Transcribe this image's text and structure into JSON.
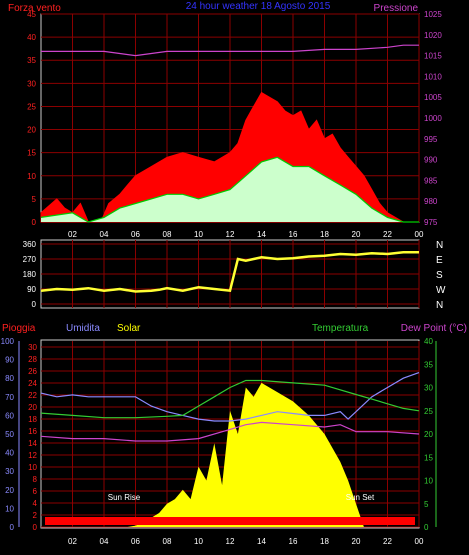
{
  "header": {
    "title": "24 hour weather 18 Agosto 2015",
    "left_label": "Forza vento",
    "right_label": "Pressione"
  },
  "panel3_labels": {
    "pioggia": "Pioggia",
    "umidita": "Umidita",
    "solar": "Solar",
    "temperatura": "Temperatura",
    "dew_point": "Dew Point (°C)"
  },
  "annotations": {
    "sunrise": "Sun Rise",
    "sunset": "Sun Set"
  },
  "colors": {
    "gust": "#ff0000",
    "wind": "#00cc00",
    "wind_fill": "#ccffcc",
    "pressure": "#cc44cc",
    "direction": "#ffff33",
    "humidity": "#8a8aff",
    "temperature": "#33cc33",
    "dew_point": "#cc44cc",
    "solar": "#ffff00",
    "rain": "#ff0000",
    "grid": "#8b0000",
    "axis_left": "#ff2020",
    "axis_right": "#cc44cc",
    "axis_blue": "#8a8aff",
    "axis_green": "#33cc33"
  },
  "chart_data": [
    {
      "type": "line",
      "name": "wind-pressure",
      "x_ticks": [
        "02",
        "04",
        "06",
        "08",
        "10",
        "12",
        "14",
        "16",
        "18",
        "20",
        "22",
        "00"
      ],
      "y_left": {
        "label": "Forza vento",
        "ylim": [
          0,
          45
        ],
        "ticks": [
          0,
          5,
          10,
          15,
          20,
          25,
          30,
          35,
          40,
          45
        ]
      },
      "y_right": {
        "label": "Pressione",
        "ylim": [
          975,
          1025
        ],
        "ticks": [
          975,
          980,
          985,
          990,
          995,
          1000,
          1005,
          1010,
          1015,
          1020,
          1025
        ]
      },
      "series": [
        {
          "name": "gust",
          "hours": [
            0,
            1,
            1.5,
            2,
            2.5,
            3,
            3.8,
            4.3,
            5,
            5.5,
            6,
            7,
            8,
            9,
            10,
            11,
            12,
            12.5,
            13,
            13.5,
            14,
            14.5,
            15,
            15.5,
            16,
            16.5,
            17,
            17.5,
            18,
            18.5,
            19,
            19.5,
            20,
            20.5,
            21,
            21.5,
            22,
            22.5,
            23,
            24
          ],
          "values": [
            2,
            5,
            3,
            2,
            4,
            0,
            0,
            4,
            6,
            8,
            10,
            12,
            14,
            15,
            14,
            13,
            15,
            17,
            22,
            25,
            28,
            27,
            26,
            24,
            23,
            24,
            20,
            22,
            18,
            19,
            16,
            14,
            12,
            10,
            7,
            4,
            2,
            1,
            0,
            0
          ]
        },
        {
          "name": "wind",
          "hours": [
            0,
            2,
            3,
            4,
            5,
            6,
            7,
            8,
            9,
            10,
            11,
            12,
            13,
            14,
            15,
            16,
            17,
            18,
            19,
            20,
            21,
            22,
            23,
            24
          ],
          "values": [
            1,
            2,
            0,
            1,
            3,
            4,
            5,
            6,
            6,
            5,
            6,
            7,
            10,
            13,
            14,
            12,
            12,
            10,
            8,
            6,
            3,
            1,
            0,
            0
          ]
        },
        {
          "name": "pressure",
          "hours": [
            0,
            2,
            4,
            5,
            6,
            7,
            8,
            10,
            12,
            14,
            16,
            18,
            19,
            20,
            22,
            23,
            24
          ],
          "values": [
            1016,
            1016,
            1016,
            1015.5,
            1015,
            1015.5,
            1016,
            1016,
            1016,
            1016,
            1016,
            1016.5,
            1016.5,
            1016.5,
            1017,
            1017.5,
            1017.5
          ]
        }
      ]
    },
    {
      "type": "line",
      "name": "wind-direction",
      "y_left_ticks": [
        0,
        90,
        180,
        270,
        360
      ],
      "y_right_ticks": [
        "N",
        "W",
        "S",
        "E",
        "N"
      ],
      "series": [
        {
          "name": "direction",
          "hours": [
            0,
            1,
            2,
            3,
            4,
            5,
            6,
            7,
            7.5,
            8,
            9,
            10,
            11,
            12,
            12.5,
            13,
            14,
            15,
            16,
            17,
            18,
            19,
            20,
            21,
            22,
            23,
            24
          ],
          "values": [
            80,
            90,
            85,
            95,
            80,
            90,
            75,
            80,
            85,
            95,
            80,
            100,
            90,
            80,
            270,
            260,
            280,
            270,
            275,
            285,
            290,
            300,
            295,
            305,
            300,
            310,
            310
          ]
        }
      ]
    },
    {
      "type": "line",
      "name": "rain-humidity-temperature",
      "y_left1": {
        "label": "Pioggia",
        "ticks": [
          0,
          2,
          4,
          6,
          8,
          10,
          12,
          14,
          16,
          18,
          20,
          22,
          24,
          26,
          28,
          30
        ]
      },
      "y_left2": {
        "label": "Umidita",
        "ticks": [
          0,
          10,
          20,
          30,
          40,
          50,
          60,
          70,
          80,
          90,
          100
        ]
      },
      "y_right": {
        "label": "Temperatura",
        "ylim": [
          0,
          40
        ],
        "ticks": [
          0,
          5,
          10,
          15,
          20,
          25,
          30,
          35,
          40
        ]
      },
      "series": [
        {
          "name": "humidity",
          "hours": [
            0,
            1,
            2,
            3,
            4,
            5,
            6,
            7,
            8,
            9,
            10,
            11,
            12,
            13,
            14,
            15,
            16,
            17,
            18,
            19,
            19.5,
            20,
            21,
            22,
            23,
            24
          ],
          "values": [
            72,
            70,
            71,
            70,
            70,
            70,
            70,
            65,
            62,
            60,
            58,
            57,
            57,
            58,
            60,
            62,
            61,
            60,
            60,
            62,
            58,
            62,
            70,
            75,
            80,
            83
          ]
        },
        {
          "name": "temperature",
          "hours": [
            0,
            2,
            4,
            6,
            8,
            9,
            10,
            11,
            12,
            13,
            14,
            16,
            18,
            20,
            21,
            22,
            23,
            24
          ],
          "values": [
            24.5,
            24,
            23.5,
            23.5,
            23.8,
            24,
            26,
            28,
            30,
            31.5,
            31.5,
            31,
            30.5,
            28.5,
            27.5,
            26.5,
            25.5,
            25
          ]
        },
        {
          "name": "dew_point",
          "hours": [
            0,
            2,
            4,
            6,
            8,
            10,
            12,
            13,
            14,
            16,
            18,
            19,
            20,
            21,
            22,
            24
          ],
          "values": [
            19.5,
            19,
            19,
            18.5,
            18.5,
            19,
            21,
            22,
            22.5,
            22,
            21.5,
            22,
            20.5,
            20.5,
            20.5,
            20
          ]
        },
        {
          "name": "solar",
          "hours": [
            0,
            5.5,
            6,
            6.5,
            7,
            7.5,
            8,
            8.5,
            9,
            9.5,
            10,
            10.5,
            11,
            11.5,
            12,
            12.5,
            13,
            13.5,
            14,
            15,
            16,
            17,
            18,
            19,
            19.5,
            20,
            20.5,
            24
          ],
          "values": [
            0,
            0,
            0.3,
            1,
            2,
            3,
            5,
            6,
            8,
            6,
            13,
            10,
            18,
            9,
            25,
            20,
            30,
            28,
            31,
            29,
            27,
            24,
            20,
            14,
            10,
            5,
            0,
            0
          ]
        },
        {
          "name": "rain",
          "hours": [
            0,
            24
          ],
          "values": [
            1,
            1
          ]
        }
      ]
    }
  ]
}
